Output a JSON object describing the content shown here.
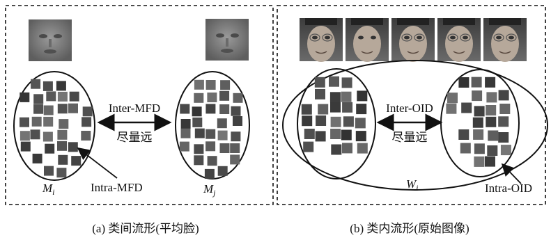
{
  "panel_a": {
    "left_set_label": "M",
    "left_set_sub": "i",
    "right_set_label": "M",
    "right_set_sub": "j",
    "arrow_label_top": "Inter-MFD",
    "arrow_label_bottom": "尽量远",
    "pointer_label": "Intra-MFD",
    "caption": "(a)  类间流形(平均脸)"
  },
  "panel_b": {
    "arrow_label_top": "Inter-OID",
    "arrow_label_bottom": "尽量远",
    "outer_label": "W",
    "outer_sub": "i",
    "pointer_label": "Intra-OID",
    "caption": "(b)  类内流形(原始图像)",
    "face_count": 5
  },
  "colors": {
    "line": "#111111",
    "patch_dark": "#3a3a3a",
    "patch_mid": "#6e6e6e",
    "face_skin": "#8a8a8a"
  }
}
